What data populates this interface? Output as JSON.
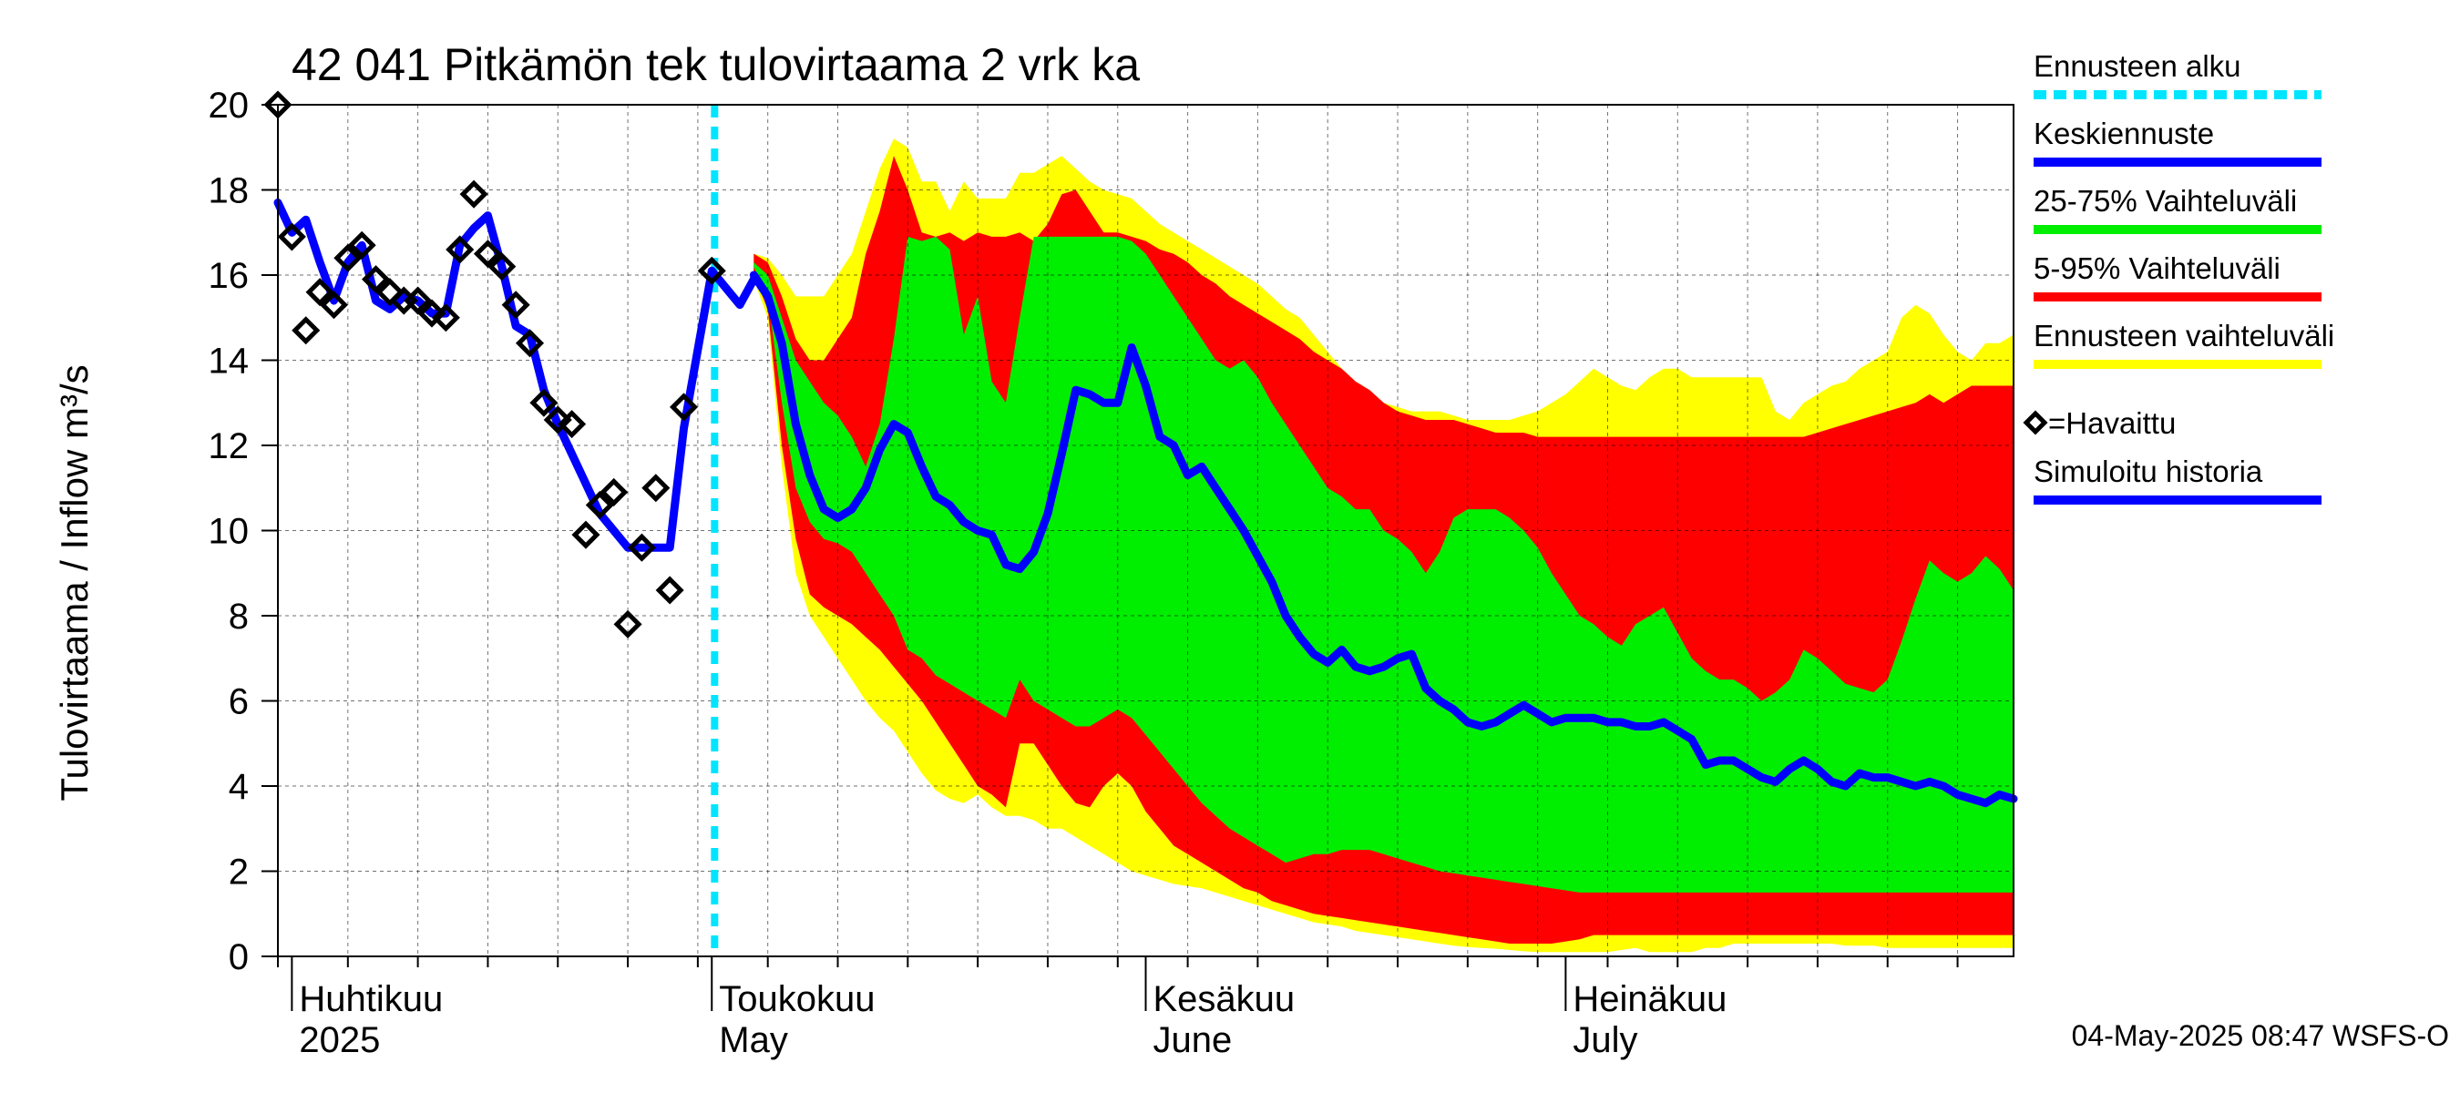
{
  "chart_data": {
    "type": "area",
    "title": "42 041 Pitkämön tek tulovirtaama 2 vrk ka",
    "ylabel": "Tulovirtaama / Inflow    m³/s",
    "ylim": [
      0,
      20
    ],
    "yticks": [
      0,
      2,
      4,
      6,
      8,
      10,
      12,
      14,
      16,
      18,
      20
    ],
    "xrange_days": [
      0,
      124
    ],
    "x_unit": "days since 2025-03-29",
    "forecast_start_day": 31.2,
    "months": [
      {
        "label_fi": "Huhtikuu",
        "label_en": "2025",
        "day": 3
      },
      {
        "label_fi": "Toukokuu",
        "label_en": "May",
        "day": 33
      },
      {
        "label_fi": "Kesäkuu",
        "label_en": "June",
        "day": 64
      },
      {
        "label_fi": "Heinäkuu",
        "label_en": "July",
        "day": 94
      }
    ],
    "legend": [
      {
        "label": "Ennusteen alku",
        "color": "#00e5ff",
        "style": "dashed"
      },
      {
        "label": "Keskiennuste",
        "color": "#0000ff",
        "style": "line"
      },
      {
        "label": "25-75% Vaihteluväli",
        "color": "#00ee00",
        "style": "line"
      },
      {
        "label": "5-95% Vaihteluväli",
        "color": "#ff0000",
        "style": "line"
      },
      {
        "label": "Ennusteen vaihteluväli",
        "color": "#ffff00",
        "style": "line"
      },
      {
        "label": "=Havaittu",
        "color": "#000000",
        "style": "diamond"
      },
      {
        "label": "Simuloitu historia",
        "color": "#0000ff",
        "style": "line"
      }
    ],
    "footer": "04-May-2025 08:47 WSFS-O",
    "colors": {
      "range_full": "#ffff00",
      "range_5_95": "#ff0000",
      "range_25_75": "#00ee00",
      "median": "#0000ff",
      "forecast_start": "#00e5ff"
    },
    "observed": [
      [
        0,
        20.0
      ],
      [
        1,
        16.9
      ],
      [
        2,
        14.7
      ],
      [
        3,
        15.6
      ],
      [
        4,
        15.3
      ],
      [
        5,
        16.4
      ],
      [
        6,
        16.7
      ],
      [
        7,
        15.9
      ],
      [
        8,
        15.6
      ],
      [
        9,
        15.4
      ],
      [
        10,
        15.4
      ],
      [
        11,
        15.1
      ],
      [
        12,
        15.0
      ],
      [
        13,
        16.6
      ],
      [
        14,
        17.9
      ],
      [
        15,
        16.5
      ],
      [
        16,
        16.2
      ],
      [
        17,
        15.3
      ],
      [
        18,
        14.4
      ],
      [
        19,
        13.0
      ],
      [
        20,
        12.6
      ],
      [
        21,
        12.5
      ],
      [
        22,
        9.9
      ],
      [
        23,
        10.6
      ],
      [
        24,
        10.9
      ],
      [
        25,
        7.8
      ],
      [
        26,
        9.6
      ],
      [
        27,
        11.0
      ],
      [
        28,
        8.6
      ],
      [
        29,
        12.9
      ],
      [
        31,
        16.1
      ]
    ],
    "simulated_history": [
      [
        0,
        17.7
      ],
      [
        1,
        17.0
      ],
      [
        2,
        17.3
      ],
      [
        3,
        16.3
      ],
      [
        4,
        15.4
      ],
      [
        5,
        16.3
      ],
      [
        6,
        16.7
      ],
      [
        7,
        15.4
      ],
      [
        8,
        15.2
      ],
      [
        9,
        15.5
      ],
      [
        10,
        15.4
      ],
      [
        11,
        15.1
      ],
      [
        12,
        15.1
      ],
      [
        13,
        16.7
      ],
      [
        14,
        17.1
      ],
      [
        15,
        17.4
      ],
      [
        16,
        16.2
      ],
      [
        17,
        14.8
      ],
      [
        18,
        14.6
      ],
      [
        19,
        13.3
      ],
      [
        20,
        12.5
      ],
      [
        21,
        11.8
      ],
      [
        22,
        11.1
      ],
      [
        23,
        10.4
      ],
      [
        24,
        10.0
      ],
      [
        25,
        9.6
      ],
      [
        26,
        9.6
      ],
      [
        27,
        9.6
      ],
      [
        28,
        9.6
      ],
      [
        29,
        12.4
      ],
      [
        31,
        16.1
      ],
      [
        32,
        15.7
      ],
      [
        33,
        15.3
      ],
      [
        34,
        15.9
      ]
    ],
    "forecast_days": [
      34,
      35,
      36,
      37,
      38,
      39,
      40,
      41,
      42,
      43,
      44,
      45,
      46,
      47,
      48,
      49,
      50,
      51,
      52,
      53,
      54,
      55,
      56,
      57,
      58,
      59,
      60,
      61,
      62,
      63,
      64,
      65,
      66,
      67,
      68,
      69,
      70,
      71,
      72,
      73,
      74,
      75,
      76,
      77,
      78,
      79,
      80,
      81,
      82,
      83,
      84,
      85,
      86,
      87,
      88,
      89,
      90,
      91,
      92,
      93,
      94,
      95,
      96,
      97,
      98,
      99,
      100,
      101,
      102,
      103,
      104,
      105,
      106,
      107,
      108,
      109,
      110,
      111,
      112,
      113,
      114,
      115,
      116,
      117,
      118,
      119,
      120,
      121,
      122,
      123,
      124
    ],
    "series": [
      {
        "name": "min",
        "values": [
          15.9,
          15.0,
          11.5,
          9.0,
          8.0,
          7.5,
          7.0,
          6.5,
          6.0,
          5.6,
          5.3,
          4.8,
          4.3,
          3.9,
          3.7,
          3.6,
          3.8,
          3.5,
          3.3,
          3.3,
          3.2,
          3.0,
          3.0,
          2.8,
          2.6,
          2.4,
          2.2,
          2.0,
          1.9,
          1.8,
          1.7,
          1.65,
          1.6,
          1.5,
          1.4,
          1.3,
          1.2,
          1.1,
          1.0,
          0.9,
          0.8,
          0.75,
          0.7,
          0.6,
          0.55,
          0.5,
          0.45,
          0.4,
          0.35,
          0.3,
          0.25,
          0.22,
          0.2,
          0.18,
          0.15,
          0.12,
          0.1,
          0.1,
          0.1,
          0.1,
          0.1,
          0.1,
          0.15,
          0.2,
          0.1,
          0.1,
          0.1,
          0.1,
          0.2,
          0.2,
          0.3,
          0.3,
          0.3,
          0.3,
          0.3,
          0.3,
          0.3,
          0.3,
          0.25,
          0.25,
          0.25,
          0.2,
          0.2,
          0.2,
          0.2,
          0.2,
          0.2,
          0.2,
          0.2,
          0.2,
          0.2
        ]
      },
      {
        "name": "p5",
        "values": [
          16.0,
          15.2,
          12.0,
          9.8,
          8.5,
          8.2,
          8.0,
          7.8,
          7.5,
          7.2,
          6.8,
          6.4,
          6.0,
          5.5,
          5.0,
          4.5,
          4.0,
          3.8,
          3.5,
          5.0,
          5.0,
          4.5,
          4.0,
          3.6,
          3.5,
          4.0,
          4.3,
          4.0,
          3.4,
          3.0,
          2.6,
          2.4,
          2.2,
          2.0,
          1.8,
          1.6,
          1.5,
          1.3,
          1.2,
          1.1,
          1.0,
          0.95,
          0.9,
          0.85,
          0.8,
          0.75,
          0.7,
          0.65,
          0.6,
          0.55,
          0.5,
          0.45,
          0.4,
          0.35,
          0.3,
          0.3,
          0.3,
          0.3,
          0.35,
          0.4,
          0.5,
          0.5,
          0.5,
          0.5,
          0.5,
          0.5,
          0.5,
          0.5,
          0.5,
          0.5,
          0.5,
          0.5,
          0.5,
          0.5,
          0.5,
          0.5,
          0.5,
          0.5,
          0.5,
          0.5,
          0.5,
          0.5,
          0.5,
          0.5,
          0.5,
          0.5,
          0.5,
          0.5,
          0.5,
          0.5,
          0.5
        ]
      },
      {
        "name": "p25",
        "values": [
          16.2,
          15.5,
          13.0,
          11.0,
          10.2,
          9.8,
          9.7,
          9.5,
          9.0,
          8.5,
          8.0,
          7.2,
          7.0,
          6.6,
          6.4,
          6.2,
          6.0,
          5.8,
          5.6,
          6.5,
          6.0,
          5.8,
          5.6,
          5.4,
          5.4,
          5.6,
          5.8,
          5.6,
          5.2,
          4.8,
          4.4,
          4.0,
          3.6,
          3.3,
          3.0,
          2.8,
          2.6,
          2.4,
          2.2,
          2.3,
          2.4,
          2.4,
          2.5,
          2.5,
          2.5,
          2.4,
          2.3,
          2.2,
          2.1,
          2.0,
          1.95,
          1.9,
          1.85,
          1.8,
          1.75,
          1.7,
          1.65,
          1.6,
          1.55,
          1.5,
          1.5,
          1.5,
          1.5,
          1.5,
          1.5,
          1.5,
          1.5,
          1.5,
          1.5,
          1.5,
          1.5,
          1.5,
          1.5,
          1.5,
          1.5,
          1.5,
          1.5,
          1.5,
          1.5,
          1.5,
          1.5,
          1.5,
          1.5,
          1.5,
          1.5,
          1.5,
          1.5,
          1.5,
          1.5,
          1.5,
          1.5
        ]
      },
      {
        "name": "median",
        "values": [
          16.0,
          15.5,
          14.4,
          12.5,
          11.3,
          10.5,
          10.3,
          10.5,
          11.0,
          11.9,
          12.5,
          12.3,
          11.5,
          10.8,
          10.6,
          10.2,
          10.0,
          9.9,
          9.2,
          9.1,
          9.5,
          10.4,
          11.8,
          13.3,
          13.2,
          13.0,
          13.0,
          14.3,
          13.4,
          12.2,
          12.0,
          11.3,
          11.5,
          11.0,
          10.5,
          10.0,
          9.4,
          8.8,
          8.0,
          7.5,
          7.1,
          6.9,
          7.2,
          6.8,
          6.7,
          6.8,
          7.0,
          7.1,
          6.3,
          6.0,
          5.8,
          5.5,
          5.4,
          5.5,
          5.7,
          5.9,
          5.7,
          5.5,
          5.6,
          5.6,
          5.6,
          5.5,
          5.5,
          5.4,
          5.4,
          5.5,
          5.3,
          5.1,
          4.5,
          4.6,
          4.6,
          4.4,
          4.2,
          4.1,
          4.4,
          4.6,
          4.4,
          4.1,
          4.0,
          4.3,
          4.2,
          4.2,
          4.1,
          4.0,
          4.1,
          4.0,
          3.8,
          3.7,
          3.6,
          3.8,
          3.7
        ]
      },
      {
        "name": "p75",
        "values": [
          16.3,
          16.0,
          15.0,
          14.0,
          13.5,
          13.0,
          12.7,
          12.2,
          11.5,
          12.5,
          14.5,
          16.9,
          16.8,
          16.9,
          16.6,
          14.6,
          15.5,
          13.5,
          13.0,
          15.0,
          16.9,
          16.9,
          16.9,
          16.9,
          16.9,
          16.9,
          16.9,
          16.8,
          16.5,
          16.0,
          15.5,
          15.0,
          14.5,
          14.0,
          13.8,
          14.0,
          13.6,
          13.0,
          12.5,
          12.0,
          11.5,
          11.0,
          10.8,
          10.5,
          10.5,
          10.0,
          9.8,
          9.5,
          9.0,
          9.5,
          10.3,
          10.5,
          10.5,
          10.5,
          10.3,
          10.0,
          9.6,
          9.0,
          8.5,
          8.0,
          7.8,
          7.5,
          7.3,
          7.8,
          8.0,
          8.2,
          7.6,
          7.0,
          6.7,
          6.5,
          6.5,
          6.3,
          6.0,
          6.2,
          6.5,
          7.2,
          7.0,
          6.7,
          6.4,
          6.3,
          6.2,
          6.5,
          7.4,
          8.4,
          9.3,
          9.0,
          8.8,
          9.0,
          9.4,
          9.1,
          8.6
        ]
      },
      {
        "name": "p95",
        "values": [
          16.5,
          16.3,
          15.5,
          14.5,
          14.0,
          14.0,
          14.5,
          15.0,
          16.5,
          17.5,
          18.8,
          18.0,
          17.0,
          16.9,
          17.0,
          16.8,
          17.0,
          16.9,
          16.9,
          17.0,
          16.8,
          17.2,
          17.9,
          18.0,
          17.5,
          17.0,
          17.0,
          16.9,
          16.8,
          16.6,
          16.5,
          16.3,
          16.0,
          15.8,
          15.5,
          15.3,
          15.1,
          14.9,
          14.7,
          14.5,
          14.2,
          14.0,
          13.8,
          13.5,
          13.3,
          13.0,
          12.8,
          12.7,
          12.6,
          12.6,
          12.6,
          12.5,
          12.4,
          12.3,
          12.3,
          12.3,
          12.2,
          12.2,
          12.2,
          12.2,
          12.2,
          12.2,
          12.2,
          12.2,
          12.2,
          12.2,
          12.2,
          12.2,
          12.2,
          12.2,
          12.2,
          12.2,
          12.2,
          12.2,
          12.2,
          12.2,
          12.3,
          12.4,
          12.5,
          12.6,
          12.7,
          12.8,
          12.9,
          13.0,
          13.2,
          13.0,
          13.2,
          13.4,
          13.4,
          13.4,
          13.4
        ]
      },
      {
        "name": "max",
        "values": [
          16.5,
          16.4,
          16.0,
          15.5,
          15.5,
          15.5,
          16.0,
          16.5,
          17.5,
          18.5,
          19.2,
          19.0,
          18.2,
          18.2,
          17.5,
          18.2,
          17.8,
          17.8,
          17.8,
          18.4,
          18.4,
          18.6,
          18.8,
          18.5,
          18.2,
          18.0,
          17.9,
          17.8,
          17.5,
          17.2,
          17.0,
          16.8,
          16.6,
          16.4,
          16.2,
          16.0,
          15.8,
          15.5,
          15.2,
          15.0,
          14.6,
          14.2,
          13.8,
          13.5,
          13.3,
          13.0,
          12.9,
          12.8,
          12.8,
          12.8,
          12.7,
          12.6,
          12.6,
          12.6,
          12.6,
          12.7,
          12.8,
          13.0,
          13.2,
          13.5,
          13.8,
          13.6,
          13.4,
          13.3,
          13.6,
          13.8,
          13.8,
          13.6,
          13.6,
          13.6,
          13.6,
          13.6,
          13.6,
          12.8,
          12.6,
          13.0,
          13.2,
          13.4,
          13.5,
          13.8,
          14.0,
          14.2,
          15.0,
          15.3,
          15.1,
          14.6,
          14.2,
          14.0,
          14.4,
          14.4,
          14.6
        ]
      }
    ]
  }
}
